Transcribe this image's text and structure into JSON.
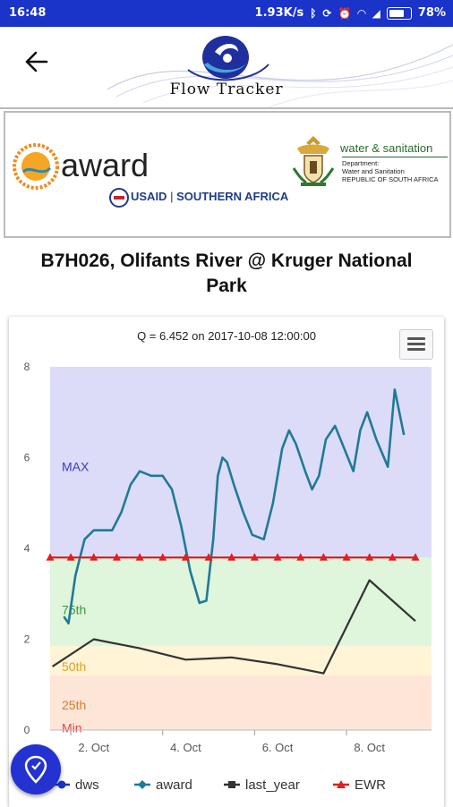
{
  "status_bar": {
    "time": "16:48",
    "network_speed": "1.93K/s",
    "battery": "78%"
  },
  "app_bar": {
    "logo_text": "Flow Tracker"
  },
  "sponsors": {
    "award": "award",
    "usaid": "USAID",
    "usaid_region": "SOUTHERN AFRICA",
    "ws_title": "water & sanitation",
    "ws_line1": "Department:",
    "ws_line2": "Water and Sanitation",
    "ws_line3": "REPUBLIC OF SOUTH AFRICA"
  },
  "station": {
    "title": "B7H026, Olifants River @ Kruger National Park"
  },
  "chart_data": {
    "type": "line",
    "title": "Q = 6.452 on 2017-10-08 12:00:00",
    "y_ticks": [
      "0",
      "2",
      "4",
      "6",
      "8"
    ],
    "ylim": [
      0,
      8
    ],
    "x_ticks": [
      "2. Oct",
      "4. Oct",
      "6. Oct",
      "8. Oct"
    ],
    "x_tick_values": [
      1.5,
      3.5,
      5.5,
      7.5
    ],
    "xlim": [
      0.55,
      8.85
    ],
    "bands": [
      {
        "label": "Min",
        "from": 0,
        "to": 0.05,
        "color": "#fde5d8",
        "text_color": "#e04a4a"
      },
      {
        "label": "25th",
        "from": 0.05,
        "to": 1.2,
        "color": "#fde5d8",
        "text_color": "#e07a2a"
      },
      {
        "label": "50th",
        "from": 1.2,
        "to": 1.85,
        "color": "#fff4d6",
        "text_color": "#e0a020"
      },
      {
        "label": "75th",
        "from": 1.85,
        "to": 3.8,
        "color": "#dff5dc",
        "text_color": "#3a9a3a"
      },
      {
        "label": "MAX",
        "from": 3.8,
        "to": 8,
        "color": "#dcdcf8",
        "text_color": "#3a3ac8"
      }
    ],
    "series": [
      {
        "name": "dws",
        "color": "#1a33c9",
        "marker": "circle",
        "x": [],
        "y": []
      },
      {
        "name": "award",
        "color": "#207a96",
        "marker": "diamond",
        "x": [
          0.85,
          0.95,
          1.0,
          1.1,
          1.3,
          1.5,
          1.7,
          1.9,
          2.1,
          2.3,
          2.5,
          2.75,
          3.0,
          3.2,
          3.4,
          3.6,
          3.8,
          3.95,
          4.1,
          4.2,
          4.3,
          4.4,
          4.55,
          4.75,
          4.95,
          5.2,
          5.4,
          5.6,
          5.75,
          5.9,
          6.1,
          6.25,
          6.4,
          6.55,
          6.75,
          6.95,
          7.15,
          7.3,
          7.45,
          7.65,
          7.9,
          8.05,
          8.25
        ],
        "y": [
          2.5,
          2.35,
          2.7,
          3.4,
          4.2,
          4.4,
          4.4,
          4.4,
          4.8,
          5.4,
          5.7,
          5.6,
          5.6,
          5.3,
          4.5,
          3.5,
          2.8,
          2.85,
          4.2,
          5.6,
          6.0,
          5.9,
          5.4,
          4.8,
          4.3,
          4.2,
          5.0,
          6.2,
          6.6,
          6.3,
          5.7,
          5.3,
          5.6,
          6.4,
          6.7,
          6.2,
          5.7,
          6.6,
          7.0,
          6.4,
          5.8,
          7.5,
          6.5
        ]
      },
      {
        "name": "last_year",
        "color": "#333333",
        "marker": "square",
        "x": [
          0.6,
          1.5,
          2.5,
          3.5,
          4.5,
          5.5,
          6.5,
          7.5,
          8.5
        ],
        "y": [
          1.4,
          2.0,
          1.8,
          1.55,
          1.6,
          1.45,
          1.25,
          3.3,
          2.4
        ]
      },
      {
        "name": "EWR",
        "color": "#e02020",
        "marker": "triangle",
        "x": [
          0.55,
          1.0,
          1.5,
          2.0,
          2.5,
          3.0,
          3.5,
          4.0,
          4.5,
          5.0,
          5.5,
          6.0,
          6.5,
          7.0,
          7.5,
          8.0,
          8.5
        ],
        "y": [
          3.8,
          3.8,
          3.8,
          3.8,
          3.8,
          3.8,
          3.8,
          3.8,
          3.8,
          3.8,
          3.8,
          3.8,
          3.8,
          3.8,
          3.8,
          3.8,
          3.8
        ]
      }
    ],
    "legend_placement": "bottom"
  }
}
